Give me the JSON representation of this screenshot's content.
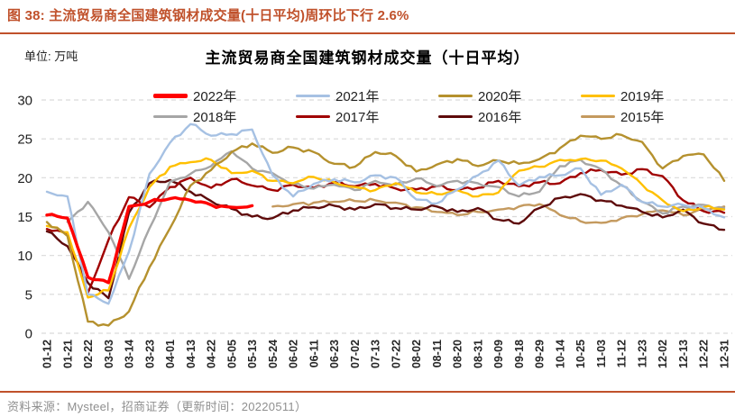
{
  "header": {
    "title": "图 38:  主流贸易商全国建筑钢材成交量(十日平均)周环比下行 2.6%"
  },
  "unit_label": "单位: 万吨",
  "footer": {
    "source": "资料来源：Mysteel，招商证券（更新时间：20220511）"
  },
  "chart_data": {
    "type": "line",
    "title": "主流贸易商全国建筑钢材成交量（十日平均）",
    "unit": "万吨",
    "ylim": [
      0,
      30
    ],
    "yticks": [
      0,
      5,
      10,
      15,
      20,
      25,
      30
    ],
    "grid": "horizontal-dashed",
    "legend_position": "top",
    "gridline_color": "#d9d9d9",
    "categories": [
      "01-12",
      "01-21",
      "02-22",
      "03-03",
      "03-14",
      "03-23",
      "04-01",
      "04-13",
      "04-22",
      "05-05",
      "05-13",
      "05-24",
      "06-02",
      "06-11",
      "06-23",
      "07-02",
      "07-13",
      "07-22",
      "08-02",
      "08-11",
      "08-20",
      "08-31",
      "09-09",
      "09-18",
      "09-29",
      "10-14",
      "10-25",
      "11-03",
      "11-12",
      "11-23",
      "12-02",
      "12-13",
      "12-22",
      "12-31"
    ],
    "series": [
      {
        "name": "2022年",
        "color": "#ff0000",
        "width": 3.4,
        "values": [
          15.2,
          14.8,
          7.2,
          6.5,
          16.3,
          16.9,
          17.3,
          17.1,
          16.5,
          16.2,
          16.4,
          null,
          null,
          null,
          null,
          null,
          null,
          null,
          null,
          null,
          null,
          null,
          null,
          null,
          null,
          null,
          null,
          null,
          null,
          null,
          null,
          null,
          null,
          null
        ]
      },
      {
        "name": "2021年",
        "color": "#a6c1e3",
        "width": 2.4,
        "values": [
          18.2,
          17.6,
          5.0,
          3.8,
          10.5,
          20.5,
          24.5,
          26.9,
          25.4,
          25.6,
          26.2,
          20.3,
          17.6,
          19.2,
          19.8,
          19.4,
          20.3,
          20.0,
          17.2,
          16.7,
          18.5,
          20.3,
          22.2,
          19.0,
          20.1,
          20.3,
          21.2,
          17.8,
          19.1,
          16.9,
          16.3,
          16.5,
          16.1,
          14.9
        ]
      },
      {
        "name": "2020年",
        "color": "#b5912e",
        "width": 2.4,
        "values": [
          14.3,
          12.5,
          1.5,
          1.0,
          2.8,
          8.5,
          13.5,
          19.0,
          21.0,
          23.3,
          24.4,
          23.2,
          23.9,
          23.3,
          21.8,
          21.4,
          23.3,
          22.8,
          20.8,
          21.7,
          22.4,
          21.5,
          22.2,
          21.8,
          22.4,
          23.8,
          25.4,
          25.0,
          25.5,
          24.6,
          21.2,
          22.8,
          23.0,
          19.6
        ]
      },
      {
        "name": "2019年",
        "color": "#ffc000",
        "width": 2.4,
        "values": [
          13.8,
          13.0,
          4.6,
          5.5,
          13.5,
          18.8,
          21.4,
          22.0,
          22.3,
          20.6,
          20.9,
          19.6,
          19.3,
          20.1,
          19.4,
          18.8,
          18.4,
          19.3,
          18.1,
          17.9,
          18.4,
          17.6,
          18.1,
          20.9,
          21.4,
          22.3,
          22.4,
          22.2,
          21.2,
          19.1,
          17.1,
          15.7,
          16.2,
          15.9
        ]
      },
      {
        "name": "2018年",
        "color": "#a6a6a6",
        "width": 2.4,
        "values": [
          null,
          14.3,
          16.9,
          13.0,
          7.0,
          13.5,
          19.5,
          20.5,
          21.5,
          23.4,
          21.2,
          20.6,
          19.2,
          18.6,
          19.1,
          18.4,
          19.6,
          19.1,
          19.9,
          18.9,
          19.6,
          19.3,
          18.8,
          17.6,
          18.2,
          21.5,
          22.3,
          21.1,
          19.0,
          16.9,
          15.4,
          16.3,
          16.5,
          16.1
        ]
      },
      {
        "name": "2017年",
        "color": "#a00000",
        "width": 2.4,
        "values": [
          13.4,
          12.8,
          5.2,
          12.0,
          17.5,
          16.2,
          18.8,
          20.0,
          18.7,
          19.8,
          19.0,
          18.4,
          19.1,
          18.7,
          19.4,
          18.9,
          19.2,
          18.6,
          18.5,
          18.9,
          18.4,
          18.7,
          19.6,
          18.9,
          19.4,
          19.3,
          20.6,
          21.0,
          20.4,
          21.1,
          20.2,
          17.1,
          15.7,
          15.5
        ]
      },
      {
        "name": "2016年",
        "color": "#5e0b0b",
        "width": 2.4,
        "values": [
          13.1,
          11.2,
          6.5,
          4.5,
          15.5,
          19.3,
          19.7,
          18.2,
          17.0,
          16.0,
          15.0,
          14.8,
          15.8,
          16.2,
          16.4,
          15.9,
          16.6,
          16.1,
          15.9,
          16.3,
          15.6,
          16.1,
          14.6,
          14.1,
          16.1,
          17.4,
          17.9,
          17.1,
          16.4,
          15.6,
          14.9,
          15.9,
          14.1,
          13.3
        ]
      },
      {
        "name": "2015年",
        "color": "#c49a5f",
        "width": 2.4,
        "values": [
          null,
          null,
          null,
          null,
          null,
          null,
          null,
          null,
          null,
          null,
          null,
          16.3,
          16.6,
          16.8,
          16.9,
          17.0,
          17.1,
          16.8,
          16.2,
          15.6,
          15.2,
          15.6,
          15.9,
          16.3,
          16.6,
          15.2,
          14.4,
          14.2,
          14.8,
          15.3,
          15.8,
          15.2,
          16.0,
          16.3
        ]
      }
    ]
  }
}
